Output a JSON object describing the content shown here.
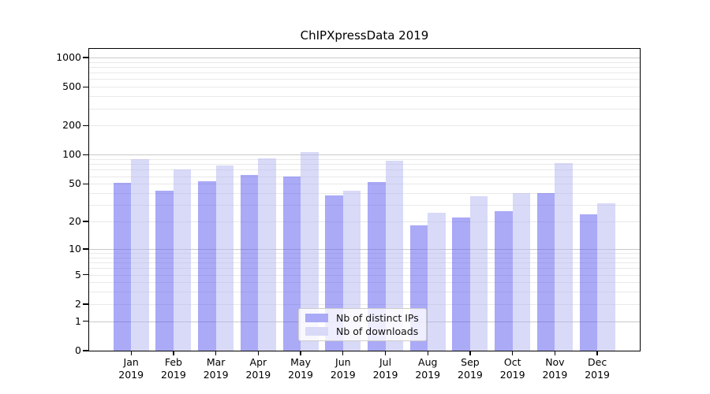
{
  "figure": {
    "title": "ChIPXpressData 2019"
  },
  "chart_data": {
    "type": "bar",
    "title": "ChIPXpressData 2019",
    "yscale": "log1p",
    "categories": [
      "Jan",
      "Feb",
      "Mar",
      "Apr",
      "May",
      "Jun",
      "Jul",
      "Aug",
      "Sep",
      "Oct",
      "Nov",
      "Dec"
    ],
    "x_tick_year_line": "2019",
    "series": [
      {
        "name": "Nb of distinct IPs",
        "color": "#aaaaf7",
        "base_color": "#5555f0",
        "alpha": 0.5,
        "values": [
          51,
          42,
          53,
          62,
          60,
          38,
          52,
          18,
          22,
          26,
          40,
          24
        ]
      },
      {
        "name": "Nb of downloads",
        "color": "#d9d9f8",
        "base_color": "#b3b3f1",
        "alpha": 0.5,
        "values": [
          90,
          70,
          78,
          92,
          107,
          42,
          87,
          25,
          37,
          40,
          82,
          31
        ]
      }
    ],
    "y_ticks": [
      0,
      1,
      2,
      5,
      10,
      20,
      50,
      100,
      200,
      500,
      1000
    ],
    "ylim": [
      0,
      1230
    ],
    "grid": "horizontal, major and minor log lines",
    "legend_position": "inside lower center",
    "colors": {
      "grid_major_decade": "#c9c9c9",
      "grid_other": "#e9e9e9",
      "spine": "#000000",
      "text": "#000000"
    }
  }
}
